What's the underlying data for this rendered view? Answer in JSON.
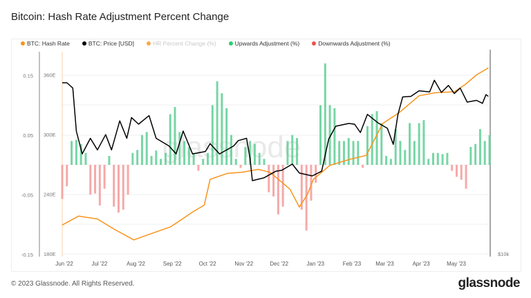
{
  "title": "Bitcoin: Hash Rate Adjustment Percent Change",
  "footer": {
    "copyright": "© 2023 Glassnode. All Rights Reserved.",
    "logo": "glassnode"
  },
  "watermark": "glassnode",
  "colors": {
    "hash_rate": "#f7931a",
    "price": "#000000",
    "hr_percent": "#f7931a",
    "up": "#5fcf95",
    "down": "#f59a9a",
    "grid": "#efefef"
  },
  "legend": [
    {
      "label": "BTC: Hash Rate",
      "color": "#f7931a",
      "enabled": true
    },
    {
      "label": "BTC: Price [USD]",
      "color": "#000000",
      "enabled": true
    },
    {
      "label": "HR Percent Change (%)",
      "color": "#f7931a",
      "enabled": false
    },
    {
      "label": "Upwards Adjustment (%)",
      "color": "#2ecc71",
      "enabled": true
    },
    {
      "label": "Downwards Adjustment (%)",
      "color": "#f0504f",
      "enabled": true
    }
  ],
  "chart_data": {
    "type": "bar+line",
    "title": "Bitcoin: Hash Rate Adjustment Percent Change",
    "x_range": [
      "2022-06-01",
      "2023-05-31"
    ],
    "x_ticks": [
      "Jun '22",
      "Jul '22",
      "Aug '22",
      "Sep '22",
      "Oct '22",
      "Nov '22",
      "Dec '22",
      "Jan '23",
      "Feb '23",
      "Mar '23",
      "Apr '23",
      "May '23"
    ],
    "x_tick_dates": [
      "2022-06-01",
      "2022-07-01",
      "2022-08-01",
      "2022-09-01",
      "2022-10-01",
      "2022-11-01",
      "2022-12-01",
      "2023-01-01",
      "2023-02-01",
      "2023-03-01",
      "2023-04-01",
      "2023-05-01"
    ],
    "y_adjustment": {
      "ticks": [
        "0.15",
        "0.05",
        "-0.05",
        "-0.15"
      ],
      "tick_values": [
        0.15,
        0.05,
        -0.05,
        -0.15
      ],
      "ylim": [
        -0.15,
        0.18
      ]
    },
    "y_hash_rate": {
      "ticks": [
        "360E",
        "300E",
        "240E",
        "180E"
      ],
      "tick_values": [
        360,
        300,
        240,
        180
      ],
      "ylim": [
        180,
        384
      ]
    },
    "y_price": {
      "scale": "log",
      "ticks": [
        "$10k"
      ],
      "tick_values": [
        10000
      ]
    },
    "grid": true,
    "legend_position": "top",
    "adjustments": {
      "dates": [
        "2022-06-01",
        "2022-06-05",
        "2022-06-09",
        "2022-06-13",
        "2022-06-17",
        "2022-06-21",
        "2022-06-25",
        "2022-06-29",
        "2022-07-03",
        "2022-07-07",
        "2022-07-11",
        "2022-07-15",
        "2022-07-19",
        "2022-07-23",
        "2022-07-27",
        "2022-07-31",
        "2022-08-04",
        "2022-08-08",
        "2022-08-12",
        "2022-08-16",
        "2022-08-20",
        "2022-08-24",
        "2022-08-28",
        "2022-09-01",
        "2022-09-05",
        "2022-09-09",
        "2022-09-13",
        "2022-09-17",
        "2022-09-21",
        "2022-09-25",
        "2022-09-29",
        "2022-10-03",
        "2022-10-07",
        "2022-10-11",
        "2022-10-15",
        "2022-10-19",
        "2022-10-23",
        "2022-10-27",
        "2022-10-31",
        "2022-11-04",
        "2022-11-08",
        "2022-11-12",
        "2022-11-16",
        "2022-11-20",
        "2022-11-24",
        "2022-11-28",
        "2022-12-02",
        "2022-12-06",
        "2022-12-10",
        "2022-12-14",
        "2022-12-18",
        "2022-12-22",
        "2022-12-26",
        "2022-12-30",
        "2023-01-03",
        "2023-01-07",
        "2023-01-11",
        "2023-01-15",
        "2023-01-19",
        "2023-01-23",
        "2023-01-27",
        "2023-01-31",
        "2023-02-04",
        "2023-02-08",
        "2023-02-12",
        "2023-02-16",
        "2023-02-20",
        "2023-02-24",
        "2023-02-28",
        "2023-03-04",
        "2023-03-08",
        "2023-03-12",
        "2023-03-16",
        "2023-03-20",
        "2023-03-24",
        "2023-03-28",
        "2023-04-01",
        "2023-04-05",
        "2023-04-09",
        "2023-04-13",
        "2023-04-17",
        "2023-04-21",
        "2023-04-25",
        "2023-04-29",
        "2023-05-03",
        "2023-05-07",
        "2023-05-11",
        "2023-05-15",
        "2023-05-19",
        "2023-05-23",
        "2023-05-27",
        "2023-05-31"
      ],
      "values": [
        -0.057,
        -0.036,
        0.04,
        0.042,
        0.035,
        0.02,
        -0.05,
        -0.048,
        -0.068,
        -0.04,
        0.015,
        -0.07,
        -0.08,
        -0.075,
        -0.05,
        0.02,
        0.025,
        0.05,
        0.055,
        0.015,
        0.024,
        0.01,
        0.02,
        0.085,
        0.097,
        0.055,
        0.04,
        0.03,
        0.02,
        -0.01,
        0.01,
        0.02,
        0.1,
        0.14,
        0.12,
        0.095,
        0.05,
        0.01,
        -0.005,
        0.03,
        0.04,
        0.035,
        0.02,
        0.01,
        -0.046,
        -0.053,
        -0.083,
        -0.07,
        0.04,
        0.05,
        0.045,
        -0.075,
        -0.11,
        -0.06,
        -0.03,
        0.1,
        0.17,
        0.1,
        0.095,
        0.04,
        0.04,
        0.045,
        0.04,
        0.04,
        -0.005,
        0.065,
        0.085,
        0.09,
        0.07,
        0.015,
        0.01,
        0.06,
        0.04,
        0.025,
        0.07,
        0.04,
        0.07,
        0.075,
        0.01,
        0.02,
        0.02,
        0.018,
        0.02,
        -0.01,
        -0.02,
        -0.025,
        -0.04,
        0.03,
        0.035,
        0.06,
        0.04,
        0.05
      ]
    },
    "series": [
      {
        "name": "BTC: Hash Rate",
        "unit": "EH/s",
        "points": [
          [
            "2022-06-01",
            209
          ],
          [
            "2022-06-15",
            218
          ],
          [
            "2022-07-01",
            215
          ],
          [
            "2022-07-15",
            205
          ],
          [
            "2022-08-01",
            194
          ],
          [
            "2022-08-15",
            200
          ],
          [
            "2022-09-01",
            207
          ],
          [
            "2022-09-10",
            214
          ],
          [
            "2022-09-20",
            222
          ],
          [
            "2022-09-30",
            229
          ],
          [
            "2022-10-05",
            255
          ],
          [
            "2022-10-20",
            261
          ],
          [
            "2022-11-01",
            262
          ],
          [
            "2022-11-15",
            265
          ],
          [
            "2022-11-25",
            262
          ],
          [
            "2022-12-05",
            252
          ],
          [
            "2022-12-12",
            245
          ],
          [
            "2022-12-20",
            227
          ],
          [
            "2022-12-27",
            240
          ],
          [
            "2023-01-01",
            255
          ],
          [
            "2023-01-15",
            269
          ],
          [
            "2023-02-01",
            275
          ],
          [
            "2023-02-15",
            279
          ],
          [
            "2023-03-01",
            311
          ],
          [
            "2023-03-15",
            322
          ],
          [
            "2023-04-01",
            339
          ],
          [
            "2023-04-15",
            342
          ],
          [
            "2023-05-01",
            343
          ],
          [
            "2023-05-10",
            350
          ],
          [
            "2023-05-20",
            360
          ],
          [
            "2023-05-30",
            367
          ]
        ]
      },
      {
        "name": "BTC: Price [USD]",
        "unit": "USD",
        "points": [
          [
            "2022-06-01",
            30000
          ],
          [
            "2022-06-05",
            30000
          ],
          [
            "2022-06-10",
            29000
          ],
          [
            "2022-06-13",
            22000
          ],
          [
            "2022-06-18",
            19000
          ],
          [
            "2022-06-25",
            21000
          ],
          [
            "2022-07-01",
            19500
          ],
          [
            "2022-07-08",
            21500
          ],
          [
            "2022-07-13",
            19500
          ],
          [
            "2022-07-20",
            23500
          ],
          [
            "2022-07-26",
            21000
          ],
          [
            "2022-07-30",
            24000
          ],
          [
            "2022-08-05",
            23000
          ],
          [
            "2022-08-14",
            24300
          ],
          [
            "2022-08-20",
            21000
          ],
          [
            "2022-08-31",
            20000
          ],
          [
            "2022-09-06",
            19000
          ],
          [
            "2022-09-12",
            22000
          ],
          [
            "2022-09-20",
            19000
          ],
          [
            "2022-10-01",
            19300
          ],
          [
            "2022-10-05",
            20300
          ],
          [
            "2022-10-13",
            19000
          ],
          [
            "2022-10-25",
            20000
          ],
          [
            "2022-10-29",
            20700
          ],
          [
            "2022-11-05",
            21000
          ],
          [
            "2022-11-08",
            18500
          ],
          [
            "2022-11-10",
            16000
          ],
          [
            "2022-11-20",
            16300
          ],
          [
            "2022-11-30",
            17000
          ],
          [
            "2022-12-05",
            17100
          ],
          [
            "2022-12-14",
            17800
          ],
          [
            "2022-12-20",
            16800
          ],
          [
            "2022-12-31",
            16500
          ],
          [
            "2023-01-08",
            17000
          ],
          [
            "2023-01-14",
            20900
          ],
          [
            "2023-01-20",
            22700
          ],
          [
            "2023-01-31",
            23100
          ],
          [
            "2023-02-05",
            23000
          ],
          [
            "2023-02-10",
            21800
          ],
          [
            "2023-02-16",
            24500
          ],
          [
            "2023-02-25",
            23200
          ],
          [
            "2023-03-05",
            22400
          ],
          [
            "2023-03-10",
            20200
          ],
          [
            "2023-03-14",
            24500
          ],
          [
            "2023-03-18",
            27400
          ],
          [
            "2023-03-25",
            27500
          ],
          [
            "2023-04-01",
            28500
          ],
          [
            "2023-04-10",
            28300
          ],
          [
            "2023-04-14",
            30500
          ],
          [
            "2023-04-20",
            28200
          ],
          [
            "2023-04-26",
            29500
          ],
          [
            "2023-05-01",
            28000
          ],
          [
            "2023-05-06",
            29000
          ],
          [
            "2023-05-12",
            26500
          ],
          [
            "2023-05-20",
            26800
          ],
          [
            "2023-05-25",
            26300
          ],
          [
            "2023-05-28",
            27800
          ],
          [
            "2023-05-30",
            27500
          ]
        ]
      }
    ]
  }
}
